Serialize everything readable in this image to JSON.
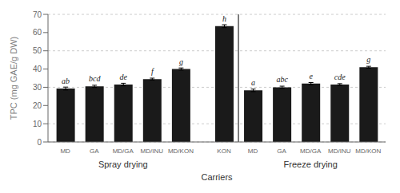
{
  "chart_data": {
    "type": "bar",
    "categories": [
      "MD",
      "GA",
      "MD/GA",
      "MD/INU",
      "MD/KON",
      "KON",
      "MD",
      "GA",
      "MD/GA",
      "MD/INU",
      "MD/KON"
    ],
    "values": [
      29.3,
      30.5,
      31.5,
      34.5,
      40.0,
      63.5,
      28.3,
      30.0,
      32.0,
      31.5,
      41.0
    ],
    "errors": [
      0.8,
      0.6,
      0.7,
      0.5,
      0.6,
      0.8,
      0.7,
      0.6,
      0.6,
      0.5,
      0.5
    ],
    "letters": [
      "ab",
      "bcd",
      "de",
      "f",
      "g",
      "h",
      "a",
      "abc",
      "e",
      "cde",
      "g"
    ],
    "color": "#1a1a1a",
    "ylabel": "TPC (mg GAE/g DW)",
    "xlabel": "Carriers",
    "group_labels": [
      "Spray drying",
      "Freeze drying"
    ],
    "ylim": [
      0,
      70
    ],
    "yticks": [
      0,
      10,
      20,
      30,
      40,
      50,
      60,
      70
    ],
    "grid": true
  }
}
